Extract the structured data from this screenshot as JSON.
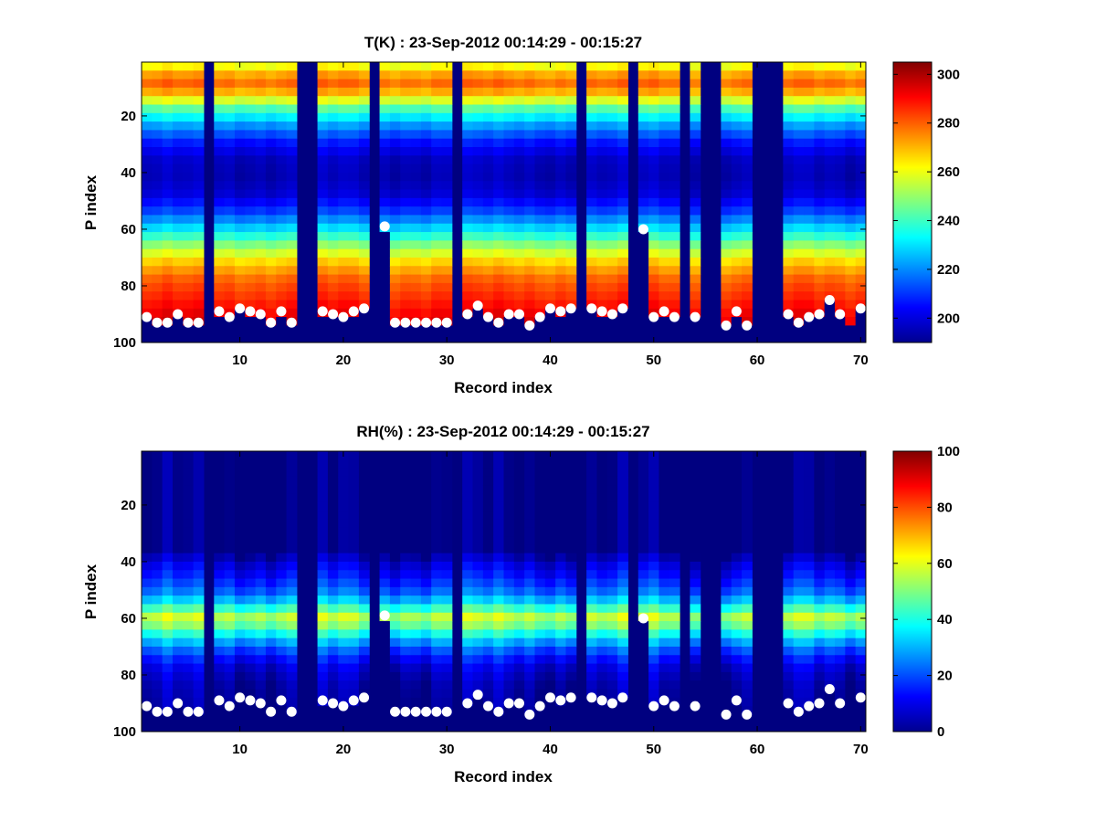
{
  "chart_data": [
    {
      "type": "heatmap",
      "title": "T(K) : 23-Sep-2012 00:14:29 - 00:15:27",
      "xlabel": "Record index",
      "ylabel": "P index",
      "xlim": [
        0.5,
        70.5
      ],
      "ylim": [
        1,
        100
      ],
      "y_reversed": true,
      "xticks": [
        10,
        20,
        30,
        40,
        50,
        60,
        70
      ],
      "yticks": [
        20,
        40,
        60,
        80,
        100
      ],
      "colorbar": {
        "range": [
          190,
          305
        ],
        "ticks": [
          200,
          220,
          240,
          260,
          280,
          300
        ],
        "colormap": "jet"
      },
      "profile_temperature_K": [
        [
          1,
          255
        ],
        [
          4,
          268
        ],
        [
          8,
          280
        ],
        [
          12,
          270
        ],
        [
          18,
          240
        ],
        [
          24,
          220
        ],
        [
          30,
          205
        ],
        [
          36,
          197
        ],
        [
          42,
          196
        ],
        [
          48,
          200
        ],
        [
          54,
          212
        ],
        [
          60,
          230
        ],
        [
          66,
          250
        ],
        [
          72,
          268
        ],
        [
          78,
          280
        ],
        [
          84,
          286
        ],
        [
          90,
          292
        ],
        [
          94,
          295
        ]
      ],
      "missing_records": [
        7,
        16,
        17,
        23,
        31,
        43,
        48,
        53,
        55,
        56,
        60,
        61,
        62
      ],
      "markers": {
        "color": "#ffffff",
        "x": [
          1,
          2,
          3,
          4,
          5,
          6,
          8,
          9,
          10,
          11,
          12,
          13,
          14,
          15,
          18,
          19,
          20,
          21,
          22,
          24,
          25,
          26,
          27,
          28,
          29,
          30,
          32,
          33,
          34,
          35,
          36,
          37,
          38,
          39,
          40,
          41,
          42,
          44,
          45,
          46,
          47,
          49,
          50,
          51,
          52,
          54,
          57,
          58,
          59,
          63,
          64,
          65,
          66,
          67,
          68,
          70
        ],
        "y": [
          91,
          93,
          93,
          90,
          93,
          93,
          89,
          91,
          88,
          89,
          90,
          93,
          89,
          93,
          89,
          90,
          91,
          89,
          88,
          59,
          93,
          93,
          93,
          93,
          93,
          93,
          90,
          87,
          91,
          93,
          90,
          90,
          94,
          91,
          88,
          89,
          88,
          88,
          89,
          90,
          88,
          60,
          91,
          89,
          91,
          91,
          94,
          89,
          94,
          90,
          93,
          91,
          90,
          85,
          90,
          88
        ]
      }
    },
    {
      "type": "heatmap",
      "title": "RH(%) : 23-Sep-2012 00:14:29 - 00:15:27",
      "xlabel": "Record index",
      "ylabel": "P index",
      "xlim": [
        0.5,
        70.5
      ],
      "ylim": [
        1,
        100
      ],
      "y_reversed": true,
      "xticks": [
        10,
        20,
        30,
        40,
        50,
        60,
        70
      ],
      "yticks": [
        20,
        40,
        60,
        80,
        100
      ],
      "colorbar": {
        "range": [
          0,
          100
        ],
        "ticks": [
          0,
          20,
          40,
          60,
          80,
          100
        ],
        "colormap": "jet"
      },
      "profile_rh_percent": [
        [
          1,
          0
        ],
        [
          36,
          0
        ],
        [
          40,
          8
        ],
        [
          46,
          15
        ],
        [
          52,
          25
        ],
        [
          57,
          45
        ],
        [
          60,
          58
        ],
        [
          63,
          48
        ],
        [
          68,
          30
        ],
        [
          73,
          16
        ],
        [
          78,
          8
        ],
        [
          84,
          4
        ],
        [
          92,
          2
        ],
        [
          100,
          0
        ]
      ],
      "markers": {
        "color": "#ffffff",
        "same_as_panel": 0
      }
    }
  ]
}
